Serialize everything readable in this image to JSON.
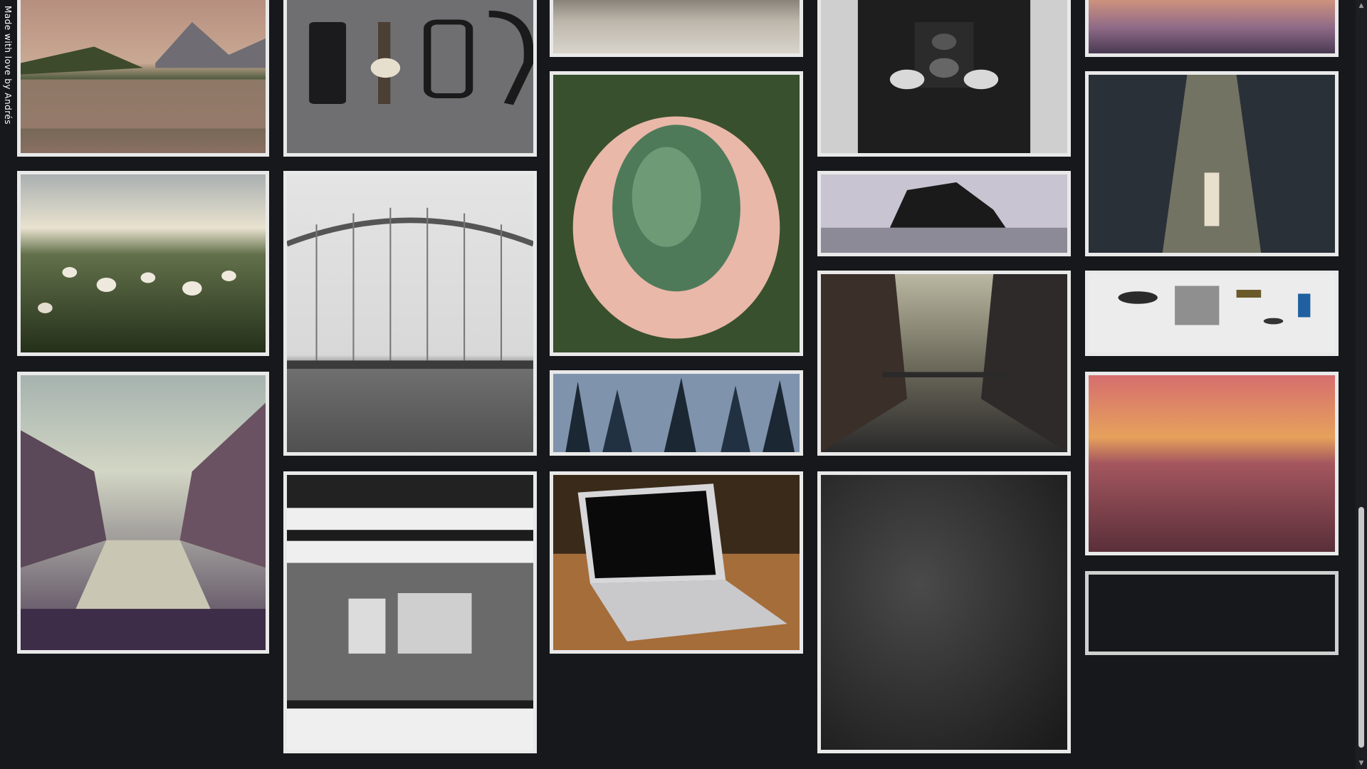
{
  "credit": {
    "text": "Made with love by Andrés"
  },
  "tiles": [
    {
      "id": "lake-mountains"
    },
    {
      "id": "flatlay-watch-glasses"
    },
    {
      "id": "beach-shore"
    },
    {
      "id": "camera-holder"
    },
    {
      "id": "sunset-clouds"
    },
    {
      "id": "dandelion-field"
    },
    {
      "id": "bridge-cyclist"
    },
    {
      "id": "pine-hands"
    },
    {
      "id": "sea-rock"
    },
    {
      "id": "wall-light-dog"
    },
    {
      "id": "canal-city"
    },
    {
      "id": "forest-trees"
    },
    {
      "id": "misty-canal"
    },
    {
      "id": "camera-parts"
    },
    {
      "id": "motion-blur-train"
    },
    {
      "id": "laptop-desk"
    },
    {
      "id": "dark-texture"
    },
    {
      "id": "sunset-sea"
    },
    {
      "id": "empty-tile"
    }
  ],
  "scrollbar": {
    "up_icon": "triangle-up",
    "down_icon": "triangle-down"
  }
}
